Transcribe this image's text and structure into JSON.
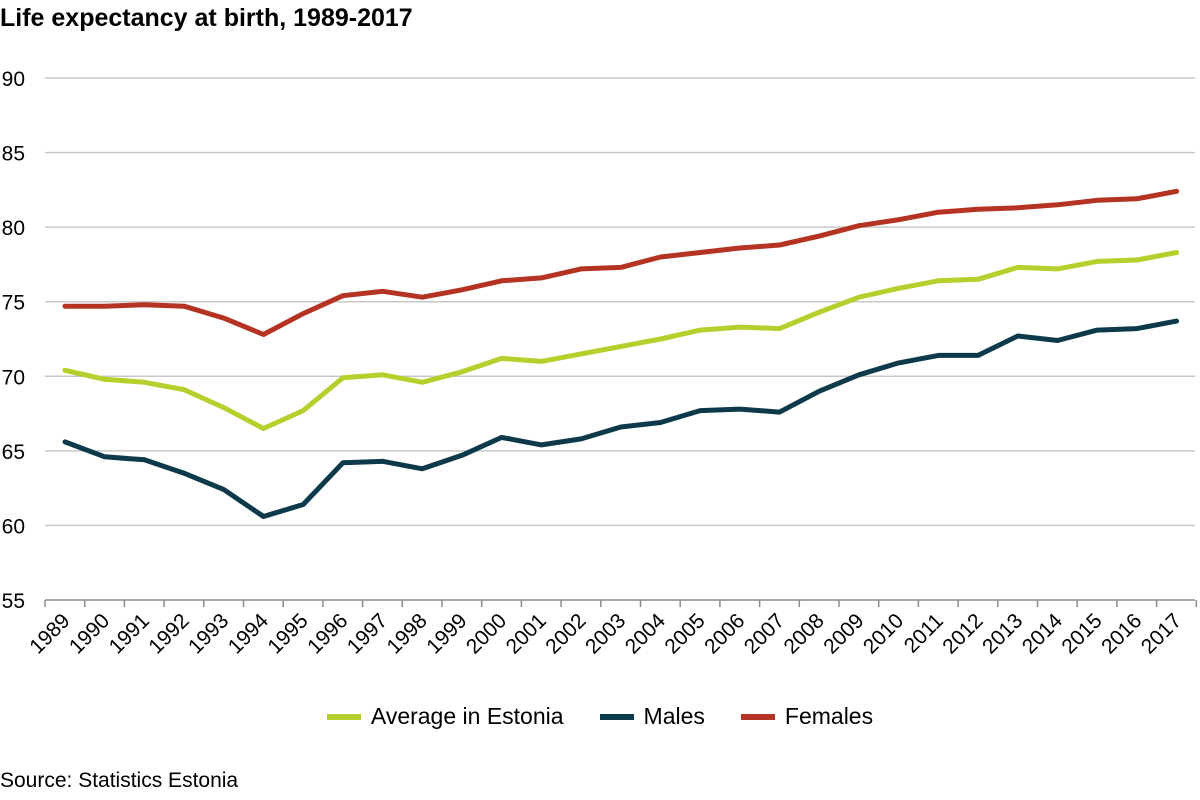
{
  "header": {
    "title": "Life expectancy at birth, 1989-2017"
  },
  "footer": {
    "source": "Source: Statistics Estonia"
  },
  "chart_data": {
    "type": "line",
    "title": "Life expectancy at birth, 1989-2017",
    "xlabel": "",
    "ylabel": "",
    "ylim": [
      55,
      90
    ],
    "yticks": [
      55,
      60,
      65,
      70,
      75,
      80,
      85,
      90
    ],
    "grid": true,
    "legend_position": "bottom",
    "categories": [
      "1989",
      "1990",
      "1991",
      "1992",
      "1993",
      "1994",
      "1995",
      "1996",
      "1997",
      "1998",
      "1999",
      "2000",
      "2001",
      "2002",
      "2003",
      "2004",
      "2005",
      "2006",
      "2007",
      "2008",
      "2009",
      "2010",
      "2011",
      "2012",
      "2013",
      "2014",
      "2015",
      "2016",
      "2017"
    ],
    "series": [
      {
        "name": "Average in Estonia",
        "color": "#b5cf2c",
        "values": [
          70.4,
          69.8,
          69.6,
          69.1,
          67.9,
          66.5,
          67.7,
          69.9,
          70.1,
          69.6,
          70.3,
          71.2,
          71.0,
          71.5,
          72.0,
          72.5,
          73.1,
          73.3,
          73.2,
          74.3,
          75.3,
          75.9,
          76.4,
          76.5,
          77.3,
          77.2,
          77.7,
          77.8,
          78.3
        ]
      },
      {
        "name": "Males",
        "color": "#0d3a4b",
        "values": [
          65.6,
          64.6,
          64.4,
          63.5,
          62.4,
          60.6,
          61.4,
          64.2,
          64.3,
          63.8,
          64.7,
          65.9,
          65.4,
          65.8,
          66.6,
          66.9,
          67.7,
          67.8,
          67.6,
          69.0,
          70.1,
          70.9,
          71.4,
          71.4,
          72.7,
          72.4,
          73.1,
          73.2,
          73.7
        ]
      },
      {
        "name": "Females",
        "color": "#b53323",
        "values": [
          74.7,
          74.7,
          74.8,
          74.7,
          73.9,
          72.8,
          74.2,
          75.4,
          75.7,
          75.3,
          75.8,
          76.4,
          76.6,
          77.2,
          77.3,
          78.0,
          78.3,
          78.6,
          78.8,
          79.4,
          80.1,
          80.5,
          81.0,
          81.2,
          81.3,
          81.5,
          81.8,
          81.9,
          82.4
        ]
      }
    ]
  }
}
